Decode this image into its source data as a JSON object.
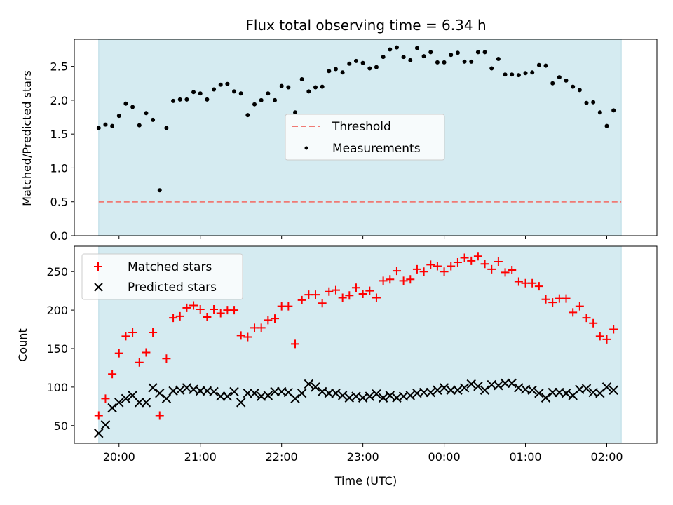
{
  "chart_data": [
    {
      "type": "scatter",
      "title": "Flux total observing time = 6.34 h",
      "xlabel": "",
      "ylabel": "Matched/Predicted stars",
      "ylim": [
        0,
        2.9
      ],
      "yticks": [
        "0.0",
        "0.5",
        "1.0",
        "1.5",
        "2.0",
        "2.5"
      ],
      "yticks_values": [
        0,
        0.5,
        1.0,
        1.5,
        2.0,
        2.5
      ],
      "legend_position": "center",
      "legend": [
        "Threshold",
        "Measurements"
      ],
      "threshold": 0.5,
      "threshold_color": "#f07a74",
      "shade_color": "#d5ebf1",
      "series": [
        {
          "name": "Measurements",
          "x": [
            "19:45",
            "19:50",
            "19:55",
            "20:00",
            "20:05",
            "20:10",
            "20:15",
            "20:20",
            "20:25",
            "20:30",
            "20:35",
            "20:40",
            "20:45",
            "20:50",
            "20:55",
            "21:00",
            "21:05",
            "21:10",
            "21:15",
            "21:20",
            "21:25",
            "21:30",
            "21:35",
            "21:40",
            "21:45",
            "21:50",
            "21:55",
            "22:00",
            "22:05",
            "22:10",
            "22:15",
            "22:20",
            "22:25",
            "22:30",
            "22:35",
            "22:40",
            "22:45",
            "22:50",
            "22:55",
            "23:00",
            "23:05",
            "23:10",
            "23:15",
            "23:20",
            "23:25",
            "23:30",
            "23:35",
            "23:40",
            "23:45",
            "23:50",
            "23:55",
            "00:00",
            "00:05",
            "00:10",
            "00:15",
            "00:20",
            "00:25",
            "00:30",
            "00:35",
            "00:40",
            "00:45",
            "00:50",
            "00:55",
            "01:00",
            "01:05",
            "01:10",
            "01:15",
            "01:20",
            "01:25",
            "01:30",
            "01:35",
            "01:40",
            "01:45",
            "01:50",
            "01:55",
            "02:00",
            "02:05"
          ],
          "values": [
            1.59,
            1.64,
            1.62,
            1.77,
            1.95,
            1.9,
            1.63,
            1.81,
            1.71,
            0.67,
            1.59,
            1.99,
            2.01,
            2.01,
            2.12,
            2.1,
            2.01,
            2.16,
            2.23,
            2.24,
            2.13,
            2.1,
            1.78,
            1.94,
            2.0,
            2.1,
            2.0,
            2.21,
            2.19,
            1.82,
            2.31,
            2.13,
            2.19,
            2.2,
            2.43,
            2.46,
            2.41,
            2.54,
            2.58,
            2.55,
            2.47,
            2.49,
            2.64,
            2.75,
            2.78,
            2.64,
            2.59,
            2.77,
            2.65,
            2.71,
            2.56,
            2.56,
            2.67,
            2.7,
            2.57,
            2.57,
            2.71,
            2.71,
            2.47,
            2.61,
            2.38,
            2.38,
            2.37,
            2.4,
            2.41,
            2.52,
            2.51,
            2.25,
            2.34,
            2.29,
            2.2,
            2.15,
            1.96,
            1.97,
            1.82,
            1.62,
            1.85
          ],
          "color": "#000000"
        }
      ]
    },
    {
      "type": "scatter",
      "title": "",
      "xlabel": "Time (UTC)",
      "ylabel": "Count",
      "ylim": [
        27,
        283
      ],
      "yticks": [
        "50",
        "100",
        "150",
        "200",
        "250"
      ],
      "yticks_values": [
        50,
        100,
        150,
        200,
        250
      ],
      "xticks": [
        "20:00",
        "21:00",
        "22:00",
        "23:00",
        "00:00",
        "01:00",
        "02:00"
      ],
      "xlim": [
        "19:27",
        "02:37"
      ],
      "legend_position": "upper left",
      "shade_color": "#d5ebf1",
      "series": [
        {
          "name": "Matched stars",
          "x": [
            "19:45",
            "19:50",
            "19:55",
            "20:00",
            "20:05",
            "20:10",
            "20:15",
            "20:20",
            "20:25",
            "20:30",
            "20:35",
            "20:40",
            "20:45",
            "20:50",
            "20:55",
            "21:00",
            "21:05",
            "21:10",
            "21:15",
            "21:20",
            "21:25",
            "21:30",
            "21:35",
            "21:40",
            "21:45",
            "21:50",
            "21:55",
            "22:00",
            "22:05",
            "22:10",
            "22:15",
            "22:20",
            "22:25",
            "22:30",
            "22:35",
            "22:40",
            "22:45",
            "22:50",
            "22:55",
            "23:00",
            "23:05",
            "23:10",
            "23:15",
            "23:20",
            "23:25",
            "23:30",
            "23:35",
            "23:40",
            "23:45",
            "23:50",
            "23:55",
            "00:00",
            "00:05",
            "00:10",
            "00:15",
            "00:20",
            "00:25",
            "00:30",
            "00:35",
            "00:40",
            "00:45",
            "00:50",
            "00:55",
            "01:00",
            "01:05",
            "01:10",
            "01:15",
            "01:20",
            "01:25",
            "01:30",
            "01:35",
            "01:40",
            "01:45",
            "01:50",
            "01:55",
            "02:00",
            "02:05"
          ],
          "values": [
            63,
            85,
            117,
            144,
            166,
            171,
            132,
            145,
            171,
            63,
            137,
            190,
            192,
            203,
            206,
            201,
            191,
            201,
            196,
            200,
            200,
            167,
            165,
            177,
            177,
            187,
            189,
            205,
            205,
            156,
            213,
            220,
            220,
            209,
            224,
            226,
            216,
            219,
            229,
            221,
            225,
            216,
            238,
            240,
            251,
            238,
            240,
            253,
            250,
            259,
            257,
            250,
            257,
            262,
            268,
            264,
            270,
            260,
            253,
            263,
            249,
            252,
            237,
            235,
            235,
            231,
            214,
            210,
            215,
            215,
            197,
            205,
            190,
            183,
            166,
            162,
            175
          ],
          "color": "#ff0000"
        },
        {
          "name": "Predicted stars",
          "x": [
            "19:45",
            "19:50",
            "19:55",
            "20:00",
            "20:05",
            "20:10",
            "20:15",
            "20:20",
            "20:25",
            "20:30",
            "20:35",
            "20:40",
            "20:45",
            "20:50",
            "20:55",
            "21:00",
            "21:05",
            "21:10",
            "21:15",
            "21:20",
            "21:25",
            "21:30",
            "21:35",
            "21:40",
            "21:45",
            "21:50",
            "21:55",
            "22:00",
            "22:05",
            "22:10",
            "22:15",
            "22:20",
            "22:25",
            "22:30",
            "22:35",
            "22:40",
            "22:45",
            "22:50",
            "22:55",
            "23:00",
            "23:05",
            "23:10",
            "23:15",
            "23:20",
            "23:25",
            "23:30",
            "23:35",
            "23:40",
            "23:45",
            "23:50",
            "23:55",
            "00:00",
            "00:05",
            "00:10",
            "00:15",
            "00:20",
            "00:25",
            "00:30",
            "00:35",
            "00:40",
            "00:45",
            "00:50",
            "00:55",
            "01:00",
            "01:05",
            "01:10",
            "01:15",
            "01:20",
            "01:25",
            "01:30",
            "01:35",
            "01:40",
            "01:45",
            "01:50",
            "01:55",
            "02:00",
            "02:05"
          ],
          "values": [
            40,
            51,
            73,
            80,
            85,
            89,
            80,
            80,
            99,
            92,
            85,
            95,
            96,
            99,
            97,
            95,
            95,
            94,
            88,
            88,
            94,
            80,
            92,
            92,
            88,
            89,
            94,
            94,
            93,
            85,
            92,
            104,
            100,
            94,
            92,
            92,
            89,
            86,
            88,
            86,
            88,
            91,
            86,
            89,
            86,
            88,
            89,
            92,
            93,
            93,
            96,
            99,
            96,
            96,
            99,
            104,
            101,
            96,
            103,
            102,
            105,
            105,
            99,
            97,
            96,
            92,
            86,
            93,
            93,
            92,
            89,
            97,
            98,
            93,
            92,
            100,
            96
          ],
          "color": "#000000"
        }
      ]
    }
  ]
}
